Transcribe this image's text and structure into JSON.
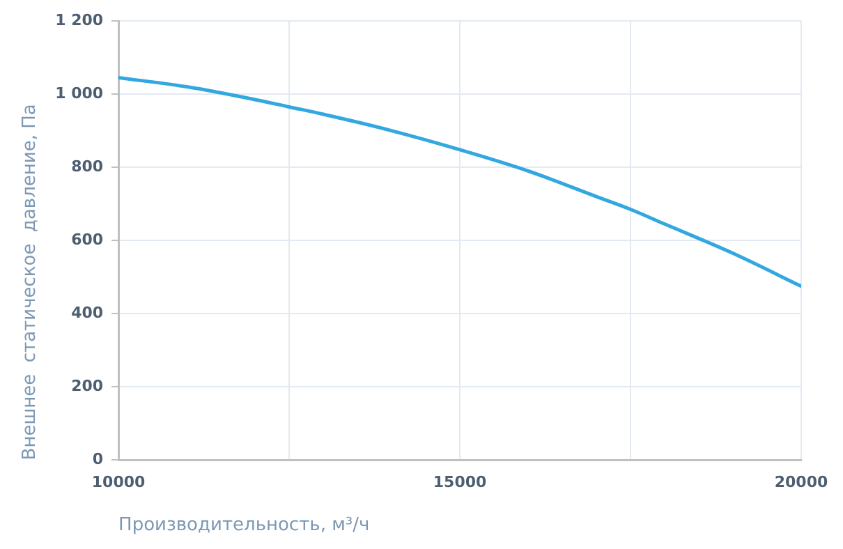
{
  "chart_data": {
    "type": "line",
    "xlabel": "Производительность, м³/ч",
    "ylabel": "Внешнее  статическое  давление, Па",
    "x": [
      10000,
      11000,
      12000,
      12500,
      13000,
      14000,
      15000,
      16000,
      17000,
      17500,
      18000,
      19000,
      20000
    ],
    "series": [
      {
        "color": "#33a8e0",
        "values": [
          1045,
          1020,
          985,
          965,
          945,
          900,
          848,
          790,
          720,
          685,
          645,
          565,
          475
        ]
      }
    ],
    "xlim": [
      10000,
      20000
    ],
    "xticks": [
      10000,
      {
        "value": 12500,
        "label": null
      },
      15000,
      {
        "value": 17500,
        "label": null
      },
      20000
    ],
    "ylim": [
      0,
      1200
    ],
    "yticks": [
      0,
      200,
      400,
      600,
      800,
      {
        "value": 1000,
        "label": "1 000"
      },
      {
        "value": 1200,
        "label": "1 200"
      }
    ],
    "grid": true,
    "legend": false,
    "marker": "none",
    "line_style": "solid"
  }
}
